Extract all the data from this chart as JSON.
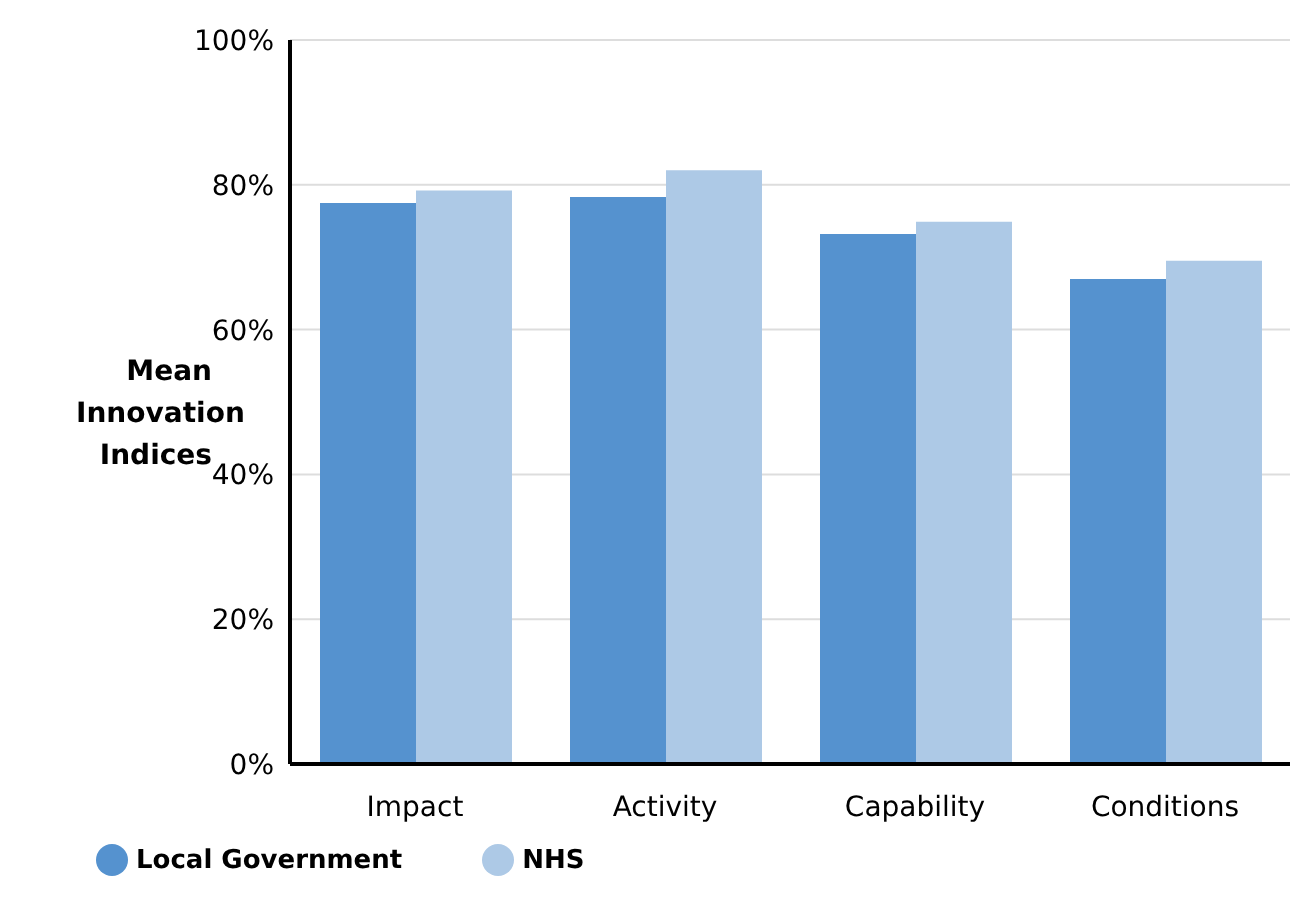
{
  "chart_data": {
    "type": "bar",
    "ylabel": "Mean Innovation Indices",
    "categories": [
      "Impact",
      "Activity",
      "Capability",
      "Conditions"
    ],
    "series": [
      {
        "name": "Local Government",
        "color": "#5592cf",
        "values": [
          77.5,
          78.3,
          73.2,
          67
        ]
      },
      {
        "name": "NHS",
        "color": "#adc9e6",
        "values": [
          79.2,
          82,
          74.9,
          69.5
        ]
      }
    ],
    "ylim": [
      0,
      100
    ],
    "yticks": [
      {
        "value": 0,
        "label": "0%"
      },
      {
        "value": 20,
        "label": "20%"
      },
      {
        "value": 40,
        "label": "40%"
      },
      {
        "value": 60,
        "label": "60%"
      },
      {
        "value": 80,
        "label": "80%"
      },
      {
        "value": 100,
        "label": "100%"
      }
    ],
    "grid": "y",
    "legend": "bottom left"
  }
}
